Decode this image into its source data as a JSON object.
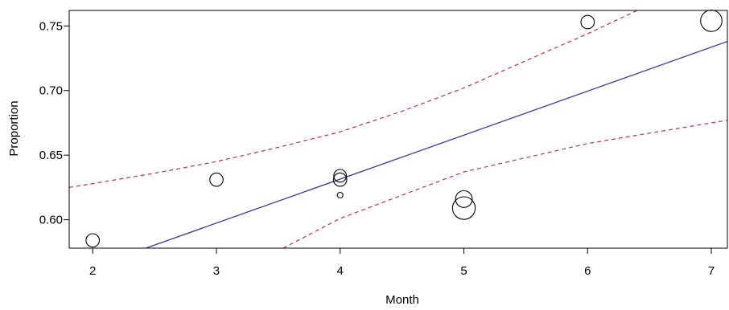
{
  "chart_data": {
    "type": "scatter",
    "title": "",
    "xlabel": "Month",
    "ylabel": "Proportion",
    "xlim": [
      1.81,
      7.13
    ],
    "ylim": [
      0.578,
      0.762
    ],
    "xticks": [
      2,
      3,
      4,
      5,
      6,
      7
    ],
    "yticks": [
      0.6,
      0.65,
      0.7,
      0.75
    ],
    "xtick_labels": [
      "2",
      "3",
      "4",
      "5",
      "6",
      "7"
    ],
    "ytick_labels": [
      "0.60",
      "0.65",
      "0.70",
      "0.75"
    ],
    "grid": false,
    "points": [
      {
        "x": 2,
        "y": 0.584,
        "size": 1.0
      },
      {
        "x": 3,
        "y": 0.631,
        "size": 1.0
      },
      {
        "x": 4,
        "y": 0.634,
        "size": 0.95
      },
      {
        "x": 4,
        "y": 0.631,
        "size": 1.0
      },
      {
        "x": 4,
        "y": 0.619,
        "size": 0.42
      },
      {
        "x": 5,
        "y": 0.616,
        "size": 1.25
      },
      {
        "x": 5,
        "y": 0.609,
        "size": 1.7
      },
      {
        "x": 6,
        "y": 0.753,
        "size": 1.0
      },
      {
        "x": 7,
        "y": 0.754,
        "size": 1.6
      }
    ],
    "series": [
      {
        "role": "fit",
        "color": "#3a3aa8",
        "dash": "solid",
        "x": [
          2.43,
          7.13
        ],
        "y": [
          0.578,
          0.738
        ]
      },
      {
        "role": "upper-band",
        "color": "#c0303e",
        "dash": "dashed",
        "x": [
          1.81,
          2,
          2.5,
          3,
          3.5,
          4,
          4.5,
          5,
          5.5,
          6,
          6.4
        ],
        "y": [
          0.625,
          0.628,
          0.636,
          0.645,
          0.656,
          0.668,
          0.684,
          0.702,
          0.723,
          0.744,
          0.762
        ]
      },
      {
        "role": "lower-band",
        "color": "#c0303e",
        "dash": "dashed",
        "x": [
          3.54,
          4,
          4.5,
          5,
          5.5,
          6,
          6.5,
          7,
          7.13
        ],
        "y": [
          0.578,
          0.601,
          0.619,
          0.637,
          0.648,
          0.659,
          0.667,
          0.675,
          0.677
        ]
      }
    ]
  }
}
